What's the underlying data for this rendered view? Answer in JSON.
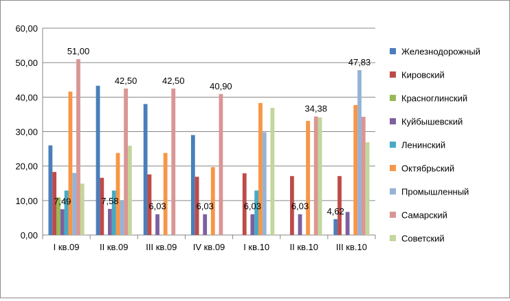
{
  "chart_data": {
    "type": "bar",
    "title": "",
    "xlabel": "",
    "ylabel": "",
    "ylim": [
      0,
      60
    ],
    "yticks": [
      "0,00",
      "10,00",
      "20,00",
      "30,00",
      "40,00",
      "50,00",
      "60,00"
    ],
    "grid": true,
    "legend_position": "right",
    "categories": [
      "I кв.09",
      "II кв.09",
      "III кв.09",
      "IV кв.09",
      "I кв.10",
      "II кв.10",
      "III кв.10"
    ],
    "series": [
      {
        "name": "Железнодорожный",
        "color": "#4a7ebb",
        "values": [
          26.0,
          43.3,
          38.0,
          29.0,
          null,
          null,
          4.62
        ]
      },
      {
        "name": "Кировский",
        "color": "#be4b48",
        "values": [
          18.3,
          16.6,
          17.6,
          16.9,
          17.9,
          17.1,
          17.1
        ]
      },
      {
        "name": "Красноглинский",
        "color": "#98b954",
        "values": [
          10.9,
          null,
          null,
          null,
          null,
          null,
          null
        ]
      },
      {
        "name": "Куйбышевский",
        "color": "#7d60a0",
        "values": [
          7.49,
          7.58,
          6.03,
          6.03,
          6.03,
          6.03,
          6.7
        ]
      },
      {
        "name": "Ленинский",
        "color": "#46aac5",
        "values": [
          12.9,
          12.9,
          null,
          null,
          12.9,
          null,
          null
        ]
      },
      {
        "name": "Октябрьский",
        "color": "#f79646",
        "values": [
          41.6,
          23.8,
          23.8,
          19.7,
          38.3,
          33.1,
          37.7
        ]
      },
      {
        "name": "Промышленный",
        "color": "#95b3d7",
        "values": [
          18.0,
          10.0,
          null,
          null,
          29.8,
          null,
          47.83
        ]
      },
      {
        "name": "Самарский",
        "color": "#d99694",
        "values": [
          51.0,
          42.5,
          42.5,
          40.9,
          null,
          34.38,
          34.3
        ]
      },
      {
        "name": "Советский",
        "color": "#c3d69b",
        "values": [
          14.9,
          25.9,
          null,
          null,
          36.9,
          34.1,
          26.9
        ]
      }
    ],
    "data_labels": [
      {
        "text": "51,00",
        "category": 0,
        "value": 51.0,
        "series": 7
      },
      {
        "text": "7,49",
        "category": 0,
        "value": 7.49,
        "series": 3
      },
      {
        "text": "42,50",
        "category": 1,
        "value": 42.5,
        "series": 7
      },
      {
        "text": "7,58",
        "category": 1,
        "value": 7.58,
        "series": 3
      },
      {
        "text": "42,50",
        "category": 2,
        "value": 42.5,
        "series": 7
      },
      {
        "text": "6,03",
        "category": 2,
        "value": 6.03,
        "series": 3
      },
      {
        "text": "40,90",
        "category": 3,
        "value": 40.9,
        "series": 7
      },
      {
        "text": "6,03",
        "category": 3,
        "value": 6.03,
        "series": 3
      },
      {
        "text": "6,03",
        "category": 4,
        "value": 6.03,
        "series": 3
      },
      {
        "text": "34,38",
        "category": 5,
        "value": 34.38,
        "series": 7
      },
      {
        "text": "6,03",
        "category": 5,
        "value": 6.03,
        "series": 3
      },
      {
        "text": "47,83",
        "category": 6,
        "value": 47.83,
        "series": 6
      },
      {
        "text": "4,62",
        "category": 6,
        "value": 4.62,
        "series": 0
      }
    ]
  }
}
